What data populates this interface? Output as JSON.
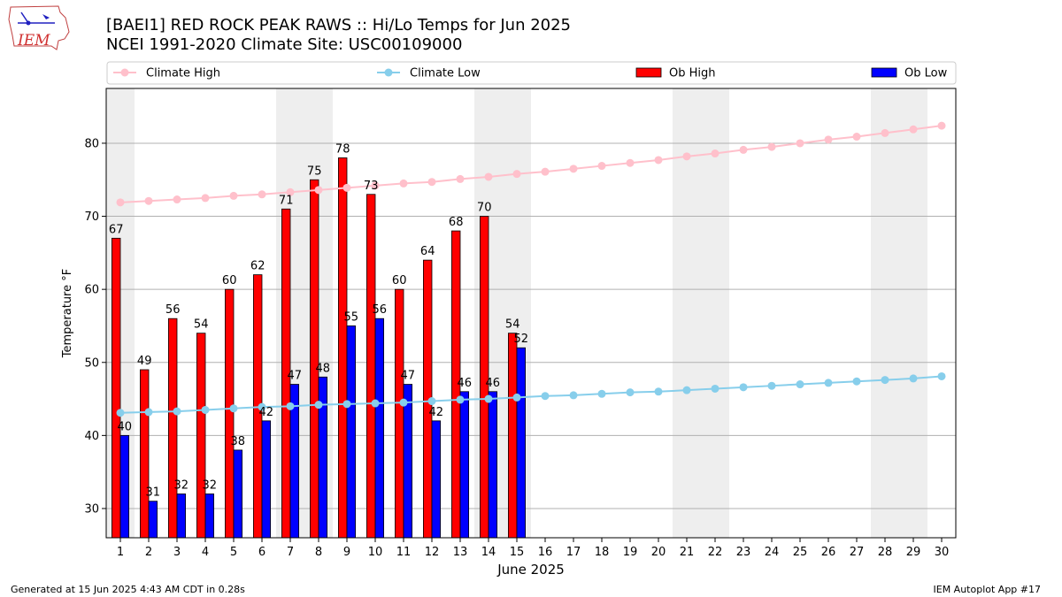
{
  "header": {
    "title_line1": "[BAEI1] RED ROCK PEAK RAWS :: Hi/Lo Temps for Jun 2025",
    "title_line2": "NCEI 1991-2020 Climate Site: USC00109000",
    "logo_text": "IEM"
  },
  "footer": {
    "generated": "Generated at 15 Jun 2025 4:43 AM CDT in 0.28s",
    "app": "IEM Autoplot App #17"
  },
  "colors": {
    "ob_high": "#ff0000",
    "ob_low": "#0000ff",
    "climate_high": "#ffc0cb",
    "climate_low": "#87ceeb",
    "weekend_band": "#eeeeee",
    "grid": "#b0b0b0"
  },
  "chart_data": {
    "type": "bar",
    "xlabel": "June 2025",
    "ylabel": "Temperature °F",
    "xlim": [
      0.5,
      30.5
    ],
    "ylim": [
      26,
      87.5
    ],
    "yticks": [
      30,
      40,
      50,
      60,
      70,
      80
    ],
    "grid": "horizontal",
    "legend_position": "top",
    "categories": [
      "1",
      "2",
      "3",
      "4",
      "5",
      "6",
      "7",
      "8",
      "9",
      "10",
      "11",
      "12",
      "13",
      "14",
      "15",
      "16",
      "17",
      "18",
      "19",
      "20",
      "21",
      "22",
      "23",
      "24",
      "25",
      "26",
      "27",
      "28",
      "29",
      "30"
    ],
    "weekend_days": [
      1,
      7,
      8,
      14,
      15,
      21,
      22,
      28,
      29
    ],
    "series": [
      {
        "name": "Ob High",
        "kind": "bar",
        "values": [
          67,
          49,
          56,
          54,
          60,
          62,
          71,
          75,
          78,
          73,
          60,
          64,
          68,
          70,
          54,
          null,
          null,
          null,
          null,
          null,
          null,
          null,
          null,
          null,
          null,
          null,
          null,
          null,
          null,
          null
        ]
      },
      {
        "name": "Ob Low",
        "kind": "bar",
        "values": [
          40,
          31,
          32,
          32,
          38,
          42,
          47,
          48,
          55,
          56,
          47,
          42,
          46,
          46,
          52,
          null,
          null,
          null,
          null,
          null,
          null,
          null,
          null,
          null,
          null,
          null,
          null,
          null,
          null,
          null
        ]
      },
      {
        "name": "Climate High",
        "kind": "line",
        "values": [
          71.9,
          72.1,
          72.3,
          72.5,
          72.8,
          73.0,
          73.3,
          73.6,
          73.9,
          74.2,
          74.5,
          74.7,
          75.1,
          75.4,
          75.8,
          76.1,
          76.5,
          76.9,
          77.3,
          77.7,
          78.2,
          78.6,
          79.1,
          79.5,
          80.0,
          80.5,
          80.9,
          81.4,
          81.9,
          82.4
        ]
      },
      {
        "name": "Climate Low",
        "kind": "line",
        "values": [
          43.1,
          43.2,
          43.3,
          43.5,
          43.7,
          43.9,
          44.0,
          44.2,
          44.3,
          44.4,
          44.5,
          44.7,
          44.9,
          45.0,
          45.2,
          45.4,
          45.5,
          45.7,
          45.9,
          46.0,
          46.2,
          46.4,
          46.6,
          46.8,
          47.0,
          47.2,
          47.4,
          47.6,
          47.8,
          48.1
        ]
      }
    ]
  }
}
